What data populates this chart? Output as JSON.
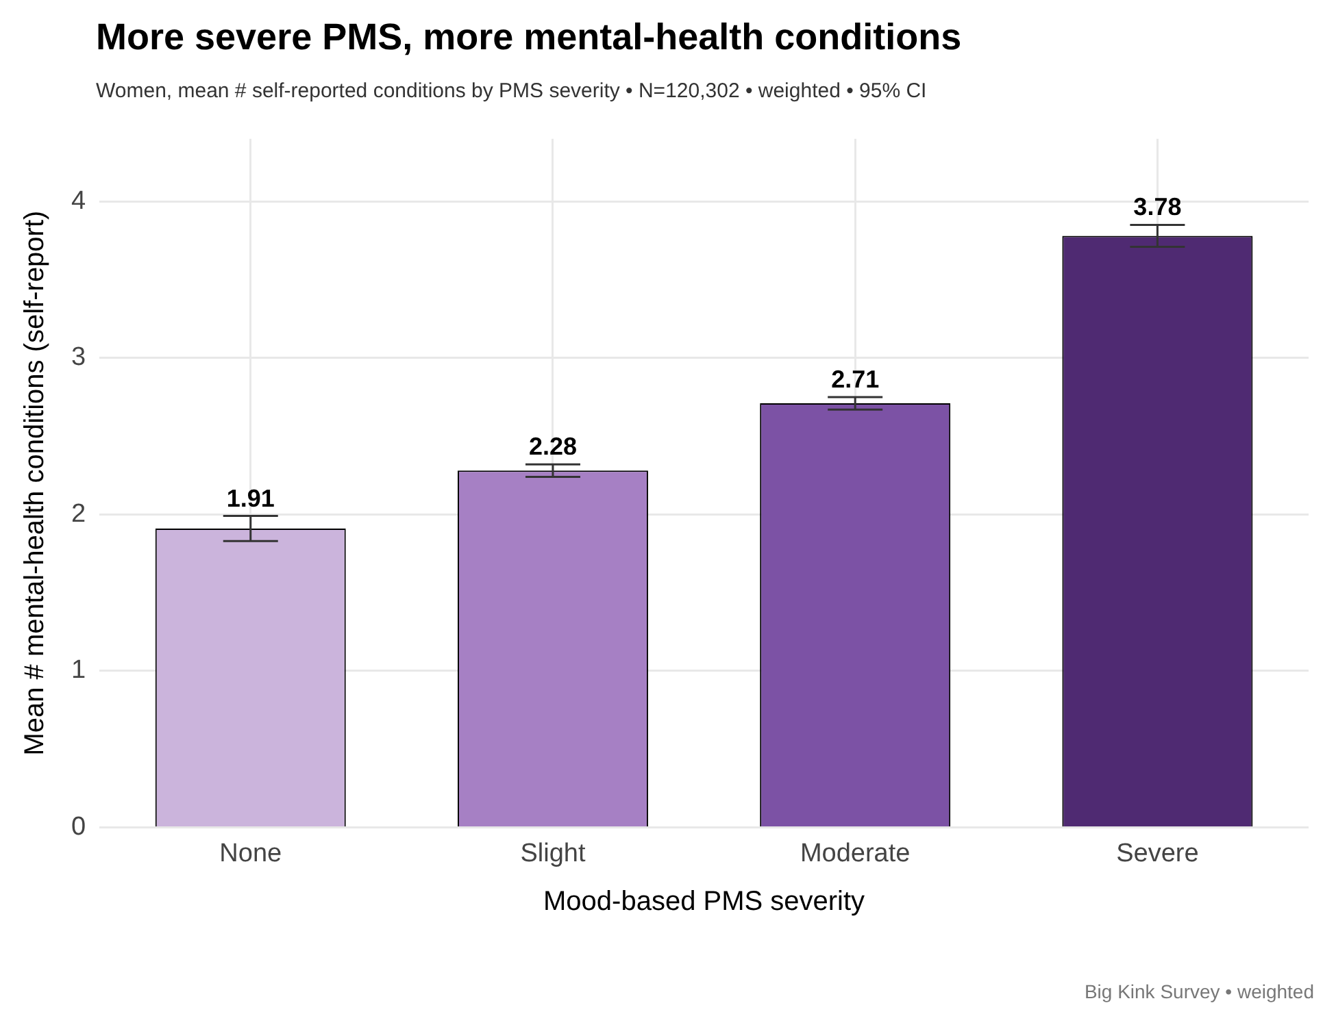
{
  "chart_data": {
    "type": "bar",
    "title": "More severe PMS, more mental-health conditions",
    "subtitle": "Women, mean # self-reported conditions by PMS severity  •  N=120,302  •  weighted  •  95% CI",
    "xlabel": "Mood-based PMS severity",
    "ylabel": "Mean # mental-health conditions (self-report)",
    "categories": [
      "None",
      "Slight",
      "Moderate",
      "Severe"
    ],
    "values": [
      1.91,
      2.28,
      2.71,
      3.78
    ],
    "colors": [
      "#cbb4dc",
      "#a680c4",
      "#7c52a5",
      "#4f2a72"
    ],
    "errors": [
      [
        1.83,
        1.99
      ],
      [
        2.24,
        2.32
      ],
      [
        2.67,
        2.75
      ],
      [
        3.71,
        3.85
      ]
    ],
    "ylim": [
      0,
      4.4
    ],
    "yticks": [
      0,
      1,
      2,
      3,
      4
    ],
    "grid": true,
    "data_labels": true,
    "annotations": [
      "Big Kink Survey  •  weighted"
    ]
  }
}
